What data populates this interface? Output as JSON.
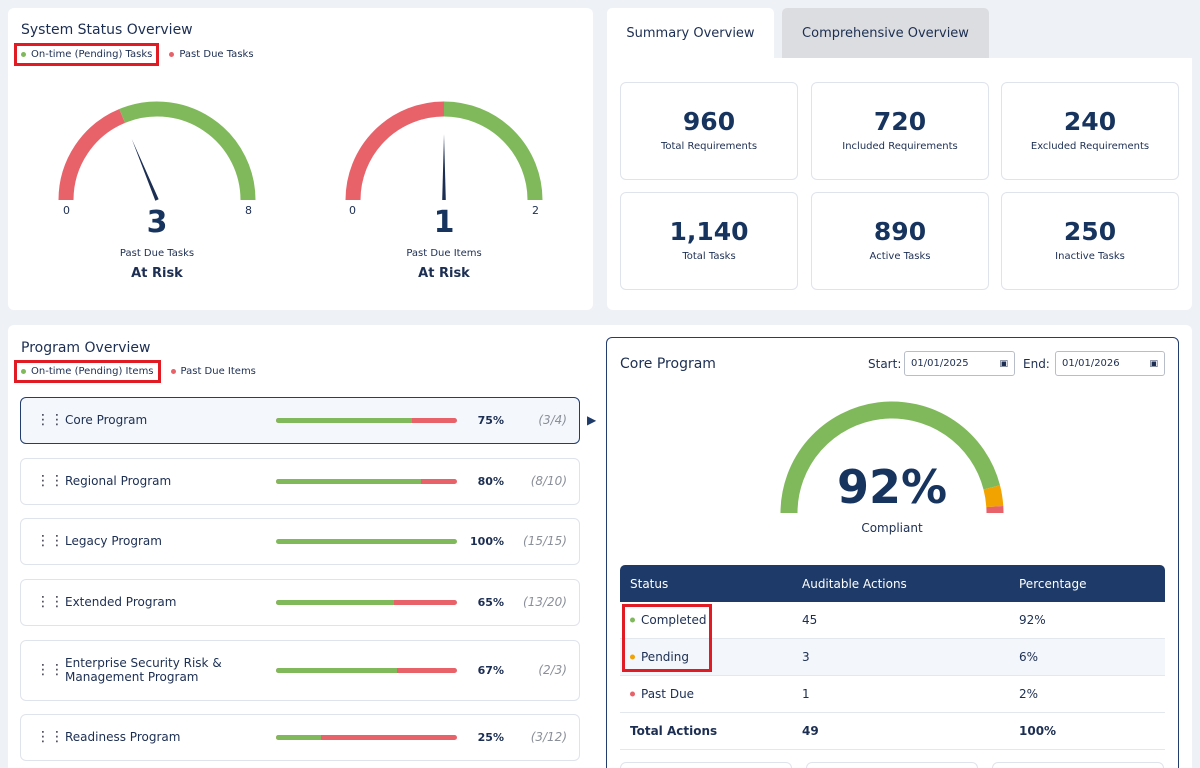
{
  "colors": {
    "green": "#80b95b",
    "red": "#e8626a",
    "orange": "#f2a300",
    "navy": "#1e3a68"
  },
  "system_status": {
    "title": "System Status Overview",
    "legend": {
      "on_time": "On-time (Pending) Tasks",
      "past_due": "Past Due Tasks"
    },
    "gauges": [
      {
        "value": "3",
        "min": "0",
        "max": "8",
        "label": "Past Due Tasks",
        "status": "At Risk",
        "red_fraction": 0.375
      },
      {
        "value": "1",
        "min": "0",
        "max": "2",
        "label": "Past Due Items",
        "status": "At Risk",
        "red_fraction": 0.5
      }
    ]
  },
  "summary": {
    "tabs": {
      "summary": "Summary Overview",
      "comprehensive": "Comprehensive Overview"
    },
    "active_tab": "summary",
    "cards": [
      {
        "number": "960",
        "label": "Total Requirements"
      },
      {
        "number": "720",
        "label": "Included Requirements"
      },
      {
        "number": "240",
        "label": "Excluded Requirements"
      },
      {
        "number": "1,140",
        "label": "Total Tasks"
      },
      {
        "number": "890",
        "label": "Active Tasks"
      },
      {
        "number": "250",
        "label": "Inactive Tasks"
      }
    ]
  },
  "program_overview": {
    "title": "Program Overview",
    "legend": {
      "on_time": "On-time (Pending) Items",
      "past_due": "Past Due Items"
    },
    "drag_glyph": "⋮⋮",
    "selected_arrow": "▶",
    "programs": [
      {
        "name": "Core Program",
        "percent": "75%",
        "fraction": "(3/4)",
        "completion": 0.75
      },
      {
        "name": "Regional Program",
        "percent": "80%",
        "fraction": "(8/10)",
        "completion": 0.8
      },
      {
        "name": "Legacy Program",
        "percent": "100%",
        "fraction": "(15/15)",
        "completion": 1.0
      },
      {
        "name": "Extended Program",
        "percent": "65%",
        "fraction": "(13/20)",
        "completion": 0.65
      },
      {
        "name": "Enterprise Security Risk & Management Program",
        "percent": "67%",
        "fraction": "(2/3)",
        "completion": 0.67
      },
      {
        "name": "Readiness Program",
        "percent": "25%",
        "fraction": "(3/12)",
        "completion": 0.25
      }
    ]
  },
  "core_program": {
    "title": "Core Program",
    "start_label": "Start:",
    "start_value": "01/01/2025",
    "end_label": "End:",
    "end_value": "01/01/2026",
    "calendar_glyph": "▣",
    "gauge": {
      "value": "92%",
      "label": "Compliant",
      "completed_fraction": 0.92,
      "pending_fraction": 0.06,
      "past_due_fraction": 0.02
    },
    "table": {
      "headers": {
        "status": "Status",
        "actions": "Auditable Actions",
        "percentage": "Percentage"
      },
      "rows": [
        {
          "status": "Completed",
          "actions": "45",
          "percentage": "92%",
          "color": "#80b95b"
        },
        {
          "status": "Pending",
          "actions": "3",
          "percentage": "6%",
          "color": "#f2a300"
        },
        {
          "status": "Past Due",
          "actions": "1",
          "percentage": "2%",
          "color": "#e8626a"
        }
      ],
      "total": {
        "status": "Total Actions",
        "actions": "49",
        "percentage": "100%"
      }
    }
  }
}
